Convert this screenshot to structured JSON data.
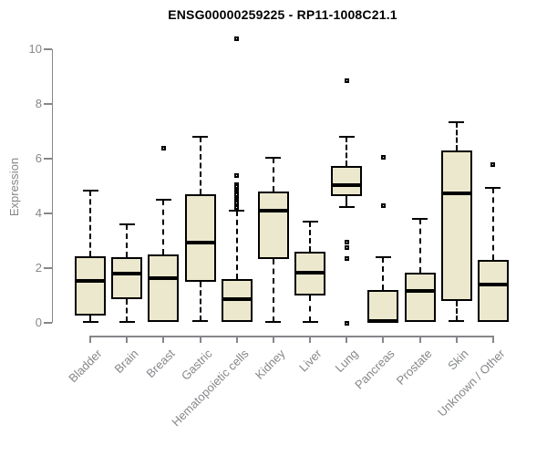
{
  "chart_data": {
    "type": "box",
    "title": "ENSG00000259225 - RP11-1008C21.1",
    "ylabel": "Expression",
    "xlabel": "",
    "ylim": [
      0,
      10
    ],
    "yticks": [
      0,
      2,
      4,
      6,
      8,
      10
    ],
    "grid": false,
    "legend": "none",
    "colors": {
      "box_fill": "#ece8cd",
      "box_stroke": "#000000",
      "median": "#000000",
      "whisker": "#000000",
      "axis": "#85878a",
      "tick_label": "#85878a",
      "title": "#000000"
    },
    "categories": [
      "Bladder",
      "Brain",
      "Breast",
      "Gastric",
      "Hematopoietic cells",
      "Kidney",
      "Liver",
      "Lung",
      "Pancreas",
      "Prostate",
      "Skin",
      "Unknown / Other"
    ],
    "boxes": [
      {
        "label": "Bladder",
        "whisker_low": 0.02,
        "q1": 0.27,
        "median": 1.55,
        "q3": 2.45,
        "whisker_high": 4.85,
        "outliers": []
      },
      {
        "label": "Brain",
        "whisker_low": 0.02,
        "q1": 0.88,
        "median": 1.8,
        "q3": 2.4,
        "whisker_high": 3.6,
        "outliers": []
      },
      {
        "label": "Breast",
        "whisker_low": 0.03,
        "q1": 0.05,
        "median": 1.65,
        "q3": 2.5,
        "whisker_high": 4.5,
        "outliers": [
          6.4
        ]
      },
      {
        "label": "Gastric",
        "whisker_low": 0.08,
        "q1": 1.5,
        "median": 2.95,
        "q3": 4.7,
        "whisker_high": 6.8,
        "outliers": []
      },
      {
        "label": "Hematopoietic cells",
        "whisker_low": 0.04,
        "q1": 0.04,
        "median": 0.87,
        "q3": 1.6,
        "whisker_high": 4.1,
        "outliers": [
          10.4,
          5.4,
          5.05,
          4.97,
          4.9,
          4.82,
          4.75,
          4.68,
          4.6,
          4.52,
          4.45,
          4.38,
          4.3,
          4.22
        ]
      },
      {
        "label": "Kidney",
        "whisker_low": 0.02,
        "q1": 2.35,
        "median": 4.1,
        "q3": 4.8,
        "whisker_high": 6.05,
        "outliers": []
      },
      {
        "label": "Liver",
        "whisker_low": 0.02,
        "q1": 1.0,
        "median": 1.85,
        "q3": 2.6,
        "whisker_high": 3.7,
        "outliers": []
      },
      {
        "label": "Lung",
        "whisker_low": 4.25,
        "q1": 4.65,
        "median": 5.05,
        "q3": 5.75,
        "whisker_high": 6.8,
        "outliers": [
          8.85,
          2.95,
          2.75,
          2.35,
          0.0
        ]
      },
      {
        "label": "Pancreas",
        "whisker_low": 0.02,
        "q1": 0.02,
        "median": 0.08,
        "q3": 1.2,
        "whisker_high": 2.4,
        "outliers": [
          6.05,
          4.3
        ]
      },
      {
        "label": "Prostate",
        "whisker_low": 0.02,
        "q1": 0.02,
        "median": 1.18,
        "q3": 1.85,
        "whisker_high": 3.8,
        "outliers": []
      },
      {
        "label": "Skin",
        "whisker_low": 0.08,
        "q1": 0.8,
        "median": 4.75,
        "q3": 6.3,
        "whisker_high": 7.35,
        "outliers": []
      },
      {
        "label": "Unknown / Other",
        "whisker_low": 0.03,
        "q1": 0.05,
        "median": 1.4,
        "q3": 2.3,
        "whisker_high": 4.95,
        "outliers": [
          5.8
        ]
      }
    ]
  }
}
